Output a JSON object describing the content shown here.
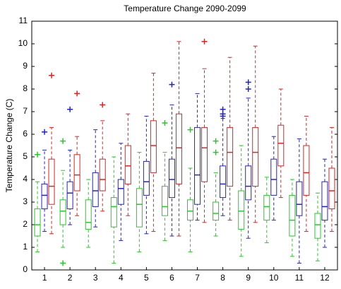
{
  "chart_data": {
    "type": "box",
    "title": "Temperature Change 2090-2099",
    "y_label": "Temperature Change (C)",
    "categories": [
      "1",
      "2",
      "3",
      "4",
      "5",
      "6",
      "7",
      "8",
      "9",
      "10",
      "11",
      "12"
    ],
    "ylim": [
      0,
      11
    ],
    "yticks": [
      0,
      1,
      2,
      3,
      4,
      5,
      6,
      7,
      8,
      9,
      10,
      11
    ],
    "series": [
      {
        "color": "#22cc22",
        "whisker_low": [
          0.8,
          1.0,
          1.0,
          0.3,
          0.8,
          1.3,
          0.8,
          1.5,
          0.6,
          1.2,
          0.6,
          0.4
        ],
        "q1": [
          1.5,
          2.0,
          1.8,
          1.9,
          1.9,
          2.4,
          2.2,
          2.2,
          1.8,
          2.2,
          1.5,
          1.4
        ],
        "median": [
          2.0,
          2.6,
          2.1,
          2.8,
          2.9,
          2.8,
          2.6,
          2.5,
          2.6,
          2.8,
          2.2,
          2.0
        ],
        "q3": [
          2.7,
          3.1,
          3.1,
          3.2,
          3.6,
          3.7,
          3.1,
          3.0,
          3.5,
          3.3,
          3.3,
          2.5
        ],
        "whisker_high": [
          3.9,
          4.4,
          4.0,
          5.0,
          5.2,
          5.2,
          4.5,
          4.3,
          5.5,
          4.1,
          4.0,
          3.4
        ],
        "outliers": [
          [
            5.1
          ],
          [
            5.7,
            0.3
          ],
          [],
          [],
          [],
          [
            6.5
          ],
          [
            6.2
          ],
          [
            5.7,
            5.2
          ],
          [],
          [],
          [],
          []
        ]
      },
      {
        "color": "#2222cc",
        "whisker_low": [
          1.7,
          2.0,
          1.9,
          1.3,
          1.6,
          1.5,
          2.2,
          2.4,
          1.4,
          2.2,
          0.3,
          1.0
        ],
        "q1": [
          2.7,
          2.7,
          2.8,
          2.9,
          3.3,
          3.2,
          2.9,
          3.2,
          3.1,
          3.3,
          2.4,
          2.2
        ],
        "median": [
          3.3,
          3.4,
          3.5,
          3.6,
          3.9,
          4.0,
          4.2,
          3.8,
          3.7,
          4.0,
          2.9,
          2.8
        ],
        "q3": [
          3.8,
          3.9,
          4.3,
          4.0,
          4.8,
          4.9,
          6.3,
          4.6,
          4.6,
          4.9,
          3.9,
          3.9
        ],
        "whisker_high": [
          5.3,
          5.3,
          6.2,
          5.6,
          6.8,
          7.3,
          7.8,
          6.7,
          7.6,
          5.9,
          5.8,
          4.9
        ],
        "outliers": [
          [
            6.1
          ],
          [
            7.1
          ],
          [],
          [],
          [],
          [
            8.2
          ],
          [],
          [
            7.1,
            6.9,
            6.8
          ],
          [
            8.3,
            8.0
          ],
          [],
          [],
          []
        ]
      },
      {
        "color": "#dd2222",
        "whisker_low": [
          1.6,
          2.4,
          2.6,
          2.4,
          1.7,
          1.5,
          2.1,
          2.2,
          2.1,
          3.2,
          1.7,
          1.7
        ],
        "q1": [
          2.9,
          3.5,
          3.5,
          3.8,
          4.3,
          3.8,
          3.9,
          3.7,
          3.7,
          4.6,
          3.3,
          2.7
        ],
        "median": [
          3.7,
          4.2,
          4.0,
          4.6,
          5.5,
          5.4,
          5.4,
          5.2,
          5.2,
          5.6,
          4.3,
          3.5
        ],
        "q3": [
          4.9,
          5.1,
          4.9,
          5.5,
          6.6,
          6.9,
          6.3,
          6.3,
          6.3,
          6.4,
          5.5,
          4.5
        ],
        "whisker_high": [
          6.3,
          5.9,
          6.6,
          6.9,
          8.7,
          10.1,
          8.9,
          9.4,
          9.9,
          8.0,
          6.8,
          6.3
        ],
        "outliers": [
          [
            8.6
          ],
          [
            7.8
          ],
          [
            7.3
          ],
          [],
          [],
          [],
          [
            10.1
          ],
          [],
          [],
          [],
          [],
          []
        ]
      }
    ]
  }
}
